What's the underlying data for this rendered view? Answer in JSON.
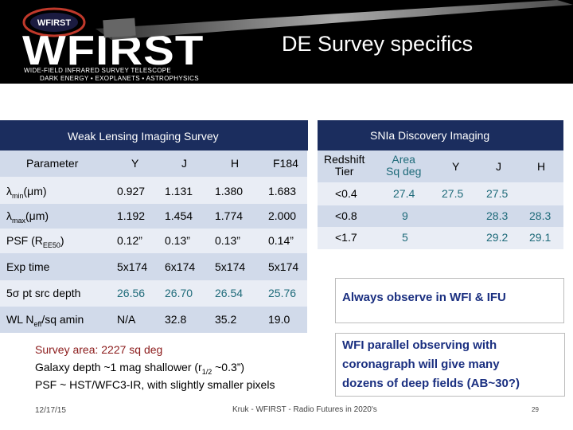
{
  "header": {
    "logo_badge": "WFIRST",
    "logo_word": "WFIRST",
    "logo_tagline1": "WIDE-FIELD INFRARED SURVEY TELESCOPE",
    "logo_tagline2": "DARK ENERGY • EXOPLANETS • ASTROPHYSICS",
    "title": "DE Survey specifics"
  },
  "weak_lensing": {
    "heading": "Weak Lensing Imaging Survey",
    "columns": [
      "Parameter",
      "Y",
      "J",
      "H",
      "F184"
    ],
    "rows": [
      {
        "label": "λ",
        "sub": "min",
        "suffix": "(μm)",
        "values": [
          "0.927",
          "1.131",
          "1.380",
          "1.683"
        ]
      },
      {
        "label": "λ",
        "sub": "max",
        "suffix": "(μm)",
        "values": [
          "1.192",
          "1.454",
          "1.774",
          "2.000"
        ]
      },
      {
        "label": "PSF (R",
        "sub": "EE50",
        "suffix": ")",
        "values": [
          "0.12”",
          "0.13”",
          "0.13”",
          "0.14”"
        ]
      },
      {
        "label": "Exp time",
        "sub": "",
        "suffix": "",
        "values": [
          "5x174",
          "6x174",
          "5x174",
          "5x174"
        ]
      },
      {
        "label": "5σ pt src depth",
        "sub": "",
        "suffix": "",
        "values": [
          "26.56",
          "26.70",
          "26.54",
          "25.76"
        ]
      },
      {
        "label": "WL N",
        "sub": "eff",
        "suffix": "/sq amin",
        "values": [
          "N/A",
          "32.8",
          "35.2",
          "19.0"
        ]
      }
    ]
  },
  "snia": {
    "heading": "SNIa  Discovery Imaging",
    "col_redshift": [
      "Redshift",
      "Tier"
    ],
    "col_area": [
      "Area",
      "Sq deg"
    ],
    "col_y": "Y",
    "col_j": "J",
    "col_h": "H",
    "rows": [
      {
        "tier": "<0.4",
        "area": "27.4",
        "y": "27.5",
        "j": "27.5",
        "h": ""
      },
      {
        "tier": "<0.8",
        "area": "9",
        "y": "",
        "j": "28.3",
        "h": "28.3"
      },
      {
        "tier": "<1.7",
        "area": "5",
        "y": "",
        "j": "29.2",
        "h": "29.1"
      }
    ]
  },
  "notes": {
    "observe": "Always observe in WFI & IFU",
    "parallel": [
      "WFI parallel observing with",
      "coronagraph will give many",
      "dozens of deep fields (AB~30?)"
    ]
  },
  "survey": {
    "line1": "Survey area:  2227 sq deg",
    "line2_pre": "Galaxy depth ~1 mag shallower (r",
    "line2_sub": "1/2",
    "line2_post": " ~0.3”)",
    "line3": "PSF ~ HST/WFC3-IR, with slightly smaller pixels"
  },
  "footer": {
    "date": "12/17/15",
    "credit": "Kruk - WFIRST - Radio Futures in 2020's",
    "page": "29"
  },
  "colors": {
    "header_bg": "#000000",
    "section_header": "#1b2d5e",
    "row_dark": "#d1daea",
    "row_light": "#e9edf5",
    "teal_text": "#1f6b7a",
    "note_text": "#1a2f80",
    "survey_text": "#8b1a1a"
  }
}
